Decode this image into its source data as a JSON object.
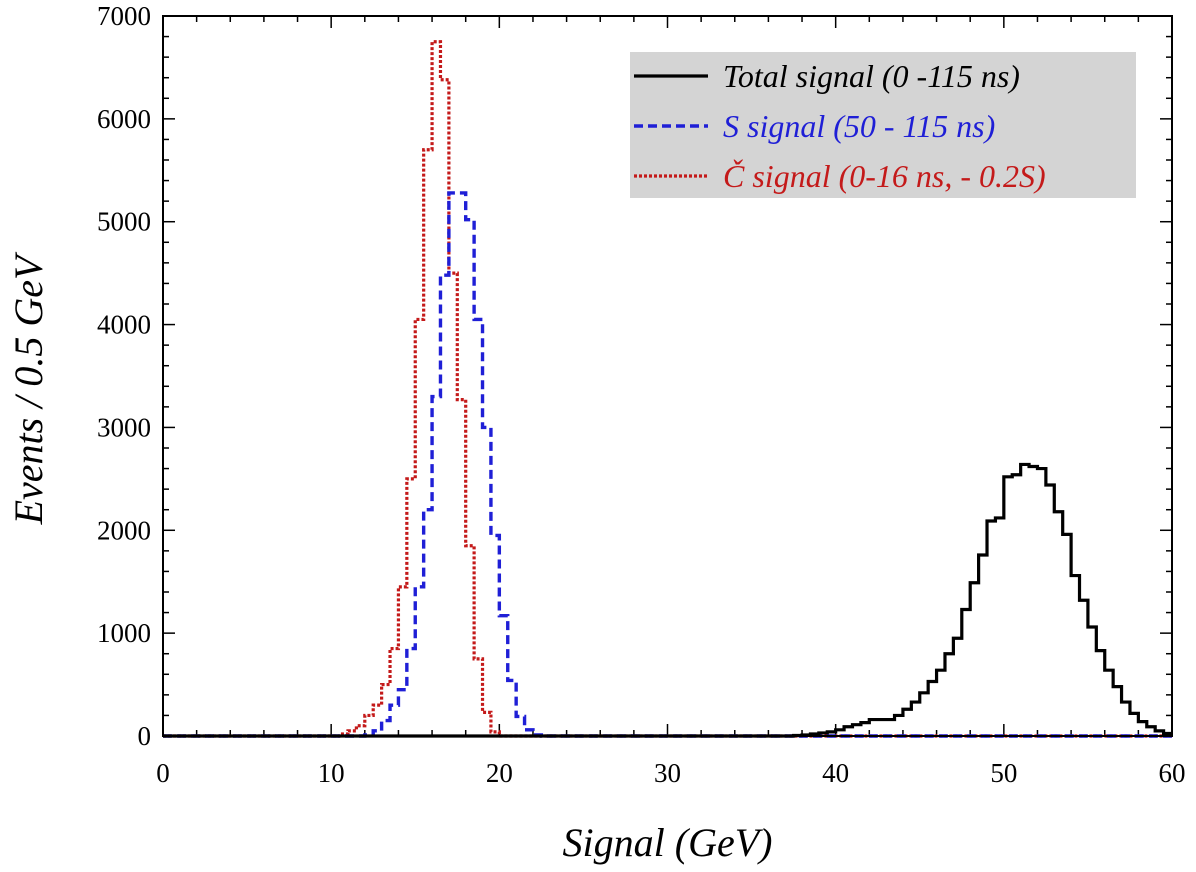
{
  "chart_data": {
    "type": "line",
    "xlabel": "Signal (GeV)",
    "ylabel": "Events / 0.5 GeV",
    "xlim": [
      0,
      60
    ],
    "ylim": [
      0,
      7000
    ],
    "x_ticks": [
      0,
      10,
      20,
      30,
      40,
      50,
      60
    ],
    "x_tick_labels": [
      "0",
      "10",
      "20",
      "30",
      "40",
      "50",
      "60"
    ],
    "y_ticks": [
      0,
      1000,
      2000,
      3000,
      4000,
      5000,
      6000,
      7000
    ],
    "y_tick_labels": [
      "0",
      "1000",
      "2000",
      "3000",
      "4000",
      "5000",
      "6000",
      "7000"
    ],
    "bin_width": 0.5,
    "grid": false,
    "legend_position": "top-right",
    "legend_background": "#d4d4d4",
    "series": [
      {
        "name": "Total signal (0 -115 ns)",
        "color": "#000000",
        "line_style": "solid",
        "bins": [
          [
            37.5,
            5
          ],
          [
            38.0,
            10
          ],
          [
            38.5,
            20
          ],
          [
            39.0,
            30
          ],
          [
            39.5,
            40
          ],
          [
            40.0,
            60
          ],
          [
            40.5,
            90
          ],
          [
            41.0,
            110
          ],
          [
            41.5,
            130
          ],
          [
            42.0,
            160
          ],
          [
            42.5,
            160
          ],
          [
            43.0,
            160
          ],
          [
            43.5,
            200
          ],
          [
            44.0,
            260
          ],
          [
            44.5,
            330
          ],
          [
            45.0,
            420
          ],
          [
            45.5,
            530
          ],
          [
            46.0,
            640
          ],
          [
            46.5,
            800
          ],
          [
            47.0,
            950
          ],
          [
            47.5,
            1230
          ],
          [
            48.0,
            1490
          ],
          [
            48.5,
            1760
          ],
          [
            49.0,
            2090
          ],
          [
            49.5,
            2120
          ],
          [
            50.0,
            2520
          ],
          [
            50.5,
            2540
          ],
          [
            51.0,
            2640
          ],
          [
            51.5,
            2620
          ],
          [
            52.0,
            2600
          ],
          [
            52.5,
            2440
          ],
          [
            53.0,
            2180
          ],
          [
            53.5,
            1960
          ],
          [
            54.0,
            1560
          ],
          [
            54.5,
            1320
          ],
          [
            55.0,
            1060
          ],
          [
            55.5,
            830
          ],
          [
            56.0,
            640
          ],
          [
            56.5,
            480
          ],
          [
            57.0,
            330
          ],
          [
            57.5,
            220
          ],
          [
            58.0,
            140
          ],
          [
            58.5,
            90
          ],
          [
            59.0,
            50
          ],
          [
            59.5,
            25
          ]
        ]
      },
      {
        "name": "S signal (50 - 115 ns)",
        "color": "#1f1fd6",
        "line_style": "dashed",
        "bins": [
          [
            12.0,
            10
          ],
          [
            12.5,
            50
          ],
          [
            13.0,
            150
          ],
          [
            13.5,
            300
          ],
          [
            14.0,
            450
          ],
          [
            14.5,
            850
          ],
          [
            15.0,
            1450
          ],
          [
            15.5,
            2200
          ],
          [
            16.0,
            3300
          ],
          [
            16.5,
            4480
          ],
          [
            17.0,
            5280
          ],
          [
            17.5,
            5280
          ],
          [
            18.0,
            5020
          ],
          [
            18.5,
            4050
          ],
          [
            19.0,
            3000
          ],
          [
            19.5,
            1950
          ],
          [
            20.0,
            1170
          ],
          [
            20.5,
            540
          ],
          [
            21.0,
            190
          ],
          [
            21.5,
            60
          ],
          [
            22.0,
            10
          ]
        ]
      },
      {
        "name": "Č signal (0-16 ns, - 0.2S)",
        "color": "#c41a1a",
        "line_style": "dotted",
        "bins": [
          [
            10.5,
            20
          ],
          [
            11.0,
            50
          ],
          [
            11.5,
            100
          ],
          [
            12.0,
            200
          ],
          [
            12.5,
            300
          ],
          [
            13.0,
            500
          ],
          [
            13.5,
            850
          ],
          [
            14.0,
            1450
          ],
          [
            14.5,
            2500
          ],
          [
            15.0,
            4050
          ],
          [
            15.5,
            5700
          ],
          [
            16.0,
            6750
          ],
          [
            16.5,
            6380
          ],
          [
            17.0,
            4500
          ],
          [
            17.5,
            3270
          ],
          [
            18.0,
            1850
          ],
          [
            18.5,
            750
          ],
          [
            19.0,
            230
          ],
          [
            19.5,
            40
          ]
        ]
      }
    ]
  }
}
